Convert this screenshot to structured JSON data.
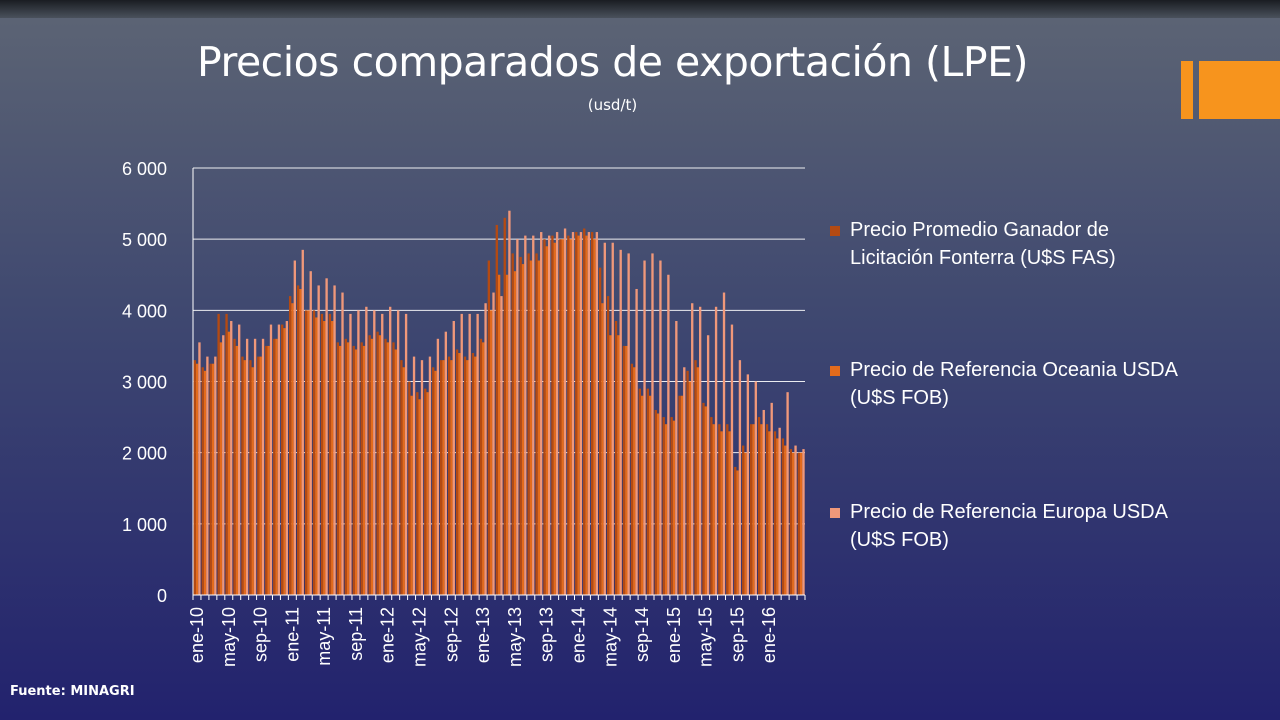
{
  "slide": {
    "title": "Precios comparados de exportación (LPE)",
    "subtitle": "(usd/t)",
    "source": "Fuente: MINAGRI"
  },
  "colors": {
    "accent": "#f7941d",
    "series": [
      "#b44a12",
      "#e36b1c",
      "#f0987a"
    ]
  },
  "chart_data": {
    "type": "bar",
    "ylim": [
      0,
      6000
    ],
    "yticks": [
      0,
      1000,
      2000,
      3000,
      4000,
      5000,
      6000
    ],
    "ytick_labels": [
      "0",
      "1 000",
      "2 000",
      "3 000",
      "4 000",
      "5 000",
      "6 000"
    ],
    "grid": true,
    "legend_position": "right",
    "categories": [
      "ene-10",
      "feb-10",
      "mar-10",
      "abr-10",
      "may-10",
      "jun-10",
      "jul-10",
      "ago-10",
      "sep-10",
      "oct-10",
      "nov-10",
      "dic-10",
      "ene-11",
      "feb-11",
      "mar-11",
      "abr-11",
      "may-11",
      "jun-11",
      "jul-11",
      "ago-11",
      "sep-11",
      "oct-11",
      "nov-11",
      "dic-11",
      "ene-12",
      "feb-12",
      "mar-12",
      "abr-12",
      "may-12",
      "jun-12",
      "jul-12",
      "ago-12",
      "sep-12",
      "oct-12",
      "nov-12",
      "dic-12",
      "ene-13",
      "feb-13",
      "mar-13",
      "abr-13",
      "may-13",
      "jun-13",
      "jul-13",
      "ago-13",
      "sep-13",
      "oct-13",
      "nov-13",
      "dic-13",
      "ene-14",
      "feb-14",
      "mar-14",
      "abr-14",
      "may-14",
      "jun-14",
      "jul-14",
      "ago-14",
      "sep-14",
      "oct-14",
      "nov-14",
      "dic-14",
      "ene-15",
      "feb-15",
      "mar-15",
      "abr-15",
      "may-15",
      "jun-15",
      "jul-15",
      "ago-15",
      "sep-15",
      "oct-15",
      "nov-15",
      "dic-15",
      "ene-16",
      "feb-16",
      "mar-16",
      "abr-16",
      "may-16"
    ],
    "xtick_labels": [
      "ene-10",
      "may-10",
      "sep-10",
      "ene-11",
      "may-11",
      "sep-11",
      "ene-12",
      "may-12",
      "sep-12",
      "ene-13",
      "may-13",
      "sep-13",
      "ene-14",
      "may-14",
      "sep-14",
      "ene-15",
      "may-15",
      "sep-15",
      "ene-16"
    ],
    "series": [
      {
        "name": "Precio Promedio Ganador de Licitación Fonterra (U$S FAS)",
        "values": [
          3300,
          3200,
          3250,
          3950,
          3950,
          3600,
          3350,
          3300,
          3350,
          3500,
          3600,
          3800,
          4200,
          4350,
          4000,
          4000,
          3950,
          3950,
          3550,
          3600,
          3500,
          3550,
          3650,
          3700,
          3600,
          3550,
          3300,
          3000,
          2850,
          2900,
          3200,
          3300,
          3350,
          3450,
          3350,
          3400,
          3600,
          4700,
          5200,
          5300,
          4800,
          4750,
          4800,
          4800,
          5000,
          5050,
          5000,
          5050,
          5100,
          5150,
          5100,
          4600,
          4200,
          3850,
          3500,
          3250,
          2900,
          2900,
          2600,
          2500,
          2500,
          2800,
          3150,
          3300,
          2700,
          2500,
          2400,
          2400,
          1800,
          2100,
          2400,
          2500,
          2400,
          2300,
          2200,
          2050,
          2000
        ]
      },
      {
        "name": "Precio de Referencia Oceania USDA (U$S FOB)",
        "values": [
          3250,
          3150,
          3250,
          3550,
          3700,
          3500,
          3300,
          3200,
          3350,
          3500,
          3600,
          3750,
          4100,
          4300,
          4000,
          3900,
          3850,
          3850,
          3500,
          3550,
          3450,
          3500,
          3600,
          3650,
          3550,
          3450,
          3200,
          2800,
          2750,
          2850,
          3150,
          3300,
          3300,
          3400,
          3300,
          3350,
          3550,
          4000,
          4500,
          4500,
          4550,
          4650,
          4700,
          4700,
          4900,
          4950,
          5000,
          5000,
          5050,
          5050,
          5000,
          4100,
          3650,
          3650,
          3500,
          3200,
          2800,
          2800,
          2550,
          2400,
          2450,
          2800,
          3000,
          3200,
          2650,
          2400,
          2300,
          2300,
          1750,
          2000,
          2400,
          2400,
          2300,
          2200,
          2100,
          2000,
          2000
        ]
      },
      {
        "name": "Precio de Referencia Europa USDA (U$S FOB)",
        "values": [
          3550,
          3350,
          3350,
          3650,
          3850,
          3800,
          3600,
          3600,
          3600,
          3800,
          3800,
          3850,
          4700,
          4850,
          4550,
          4350,
          4450,
          4350,
          4250,
          3950,
          4000,
          4050,
          4000,
          3950,
          4050,
          4000,
          3950,
          3350,
          3300,
          3350,
          3600,
          3700,
          3850,
          3950,
          3950,
          3950,
          4100,
          4250,
          4200,
          5400,
          5000,
          5050,
          5050,
          5100,
          5050,
          5100,
          5150,
          5100,
          5100,
          5100,
          5100,
          4950,
          4950,
          4850,
          4800,
          4300,
          4700,
          4800,
          4700,
          4500,
          3850,
          3200,
          4100,
          4050,
          3650,
          4050,
          4250,
          3800,
          3300,
          3100,
          3000,
          2600,
          2700,
          2350,
          2850,
          2100,
          2050
        ]
      }
    ]
  }
}
